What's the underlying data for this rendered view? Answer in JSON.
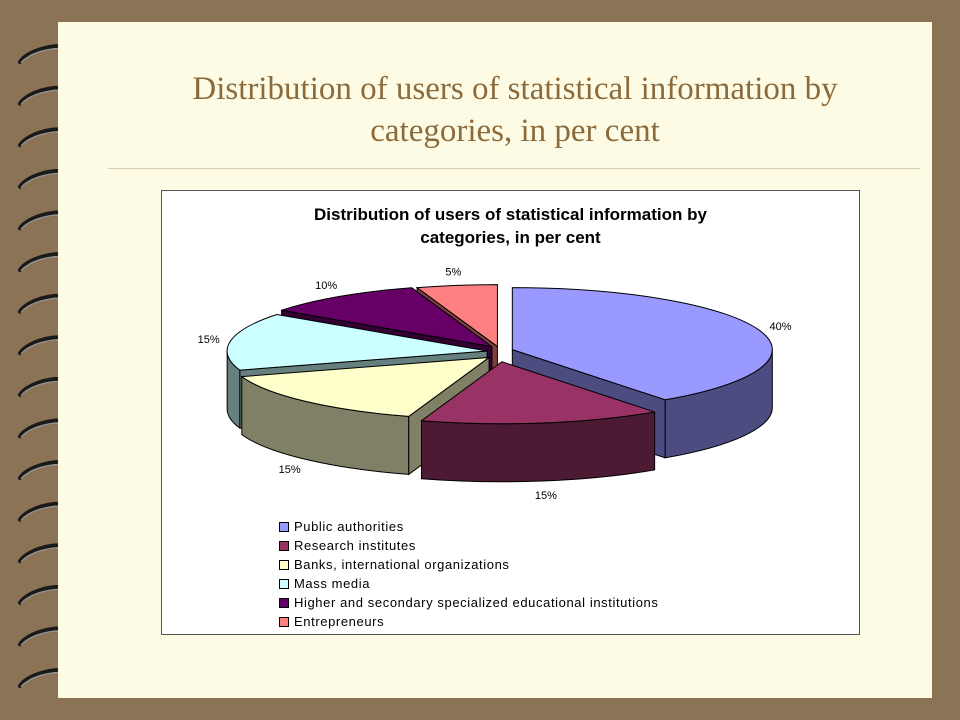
{
  "slide": {
    "title": "Distribution of users of statistical information by categories, in per cent",
    "colors": {
      "frame": "#8b7355",
      "paper": "#fdfbe3",
      "title": "#8b6a3c",
      "ring": "#1a1a1a"
    }
  },
  "chart_data": {
    "type": "pie",
    "style": "3d-exploded",
    "title": "Distribution of users of statistical information by categories, in per cent",
    "legend_position": "bottom",
    "slices": [
      {
        "label": "Public authorities",
        "value": 40,
        "data_label": "40%",
        "color": "#9999ff",
        "side_color": "#4c4c80"
      },
      {
        "label": "Research institutes",
        "value": 15,
        "data_label": "15%",
        "color": "#993366",
        "side_color": "#4d1a33"
      },
      {
        "label": "Banks, international organizations",
        "value": 15,
        "data_label": "15%",
        "color": "#ffffcc",
        "side_color": "#808066"
      },
      {
        "label": "Mass media",
        "value": 15,
        "data_label": "15%",
        "color": "#ccffff",
        "side_color": "#668080"
      },
      {
        "label": "Higher and secondary specialized educational institutions",
        "value": 10,
        "data_label": "10%",
        "color": "#660066",
        "side_color": "#330033"
      },
      {
        "label": "Entrepreneurs",
        "value": 5,
        "data_label": "5%",
        "color": "#ff8080",
        "side_color": "#804040"
      }
    ]
  }
}
